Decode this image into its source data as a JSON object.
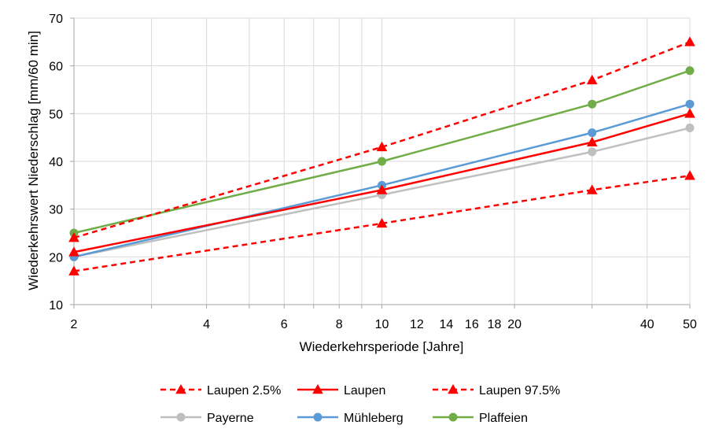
{
  "chart_data": {
    "type": "line",
    "x_scale": "log",
    "xlabel": "Wiederkehrsperiode [Jahre]",
    "ylabel": "Wiederkehrswert Niederschlag [mm/60 min]",
    "xlim": [
      2,
      50
    ],
    "ylim": [
      10,
      70
    ],
    "x_ticks": [
      2,
      4,
      6,
      8,
      10,
      12,
      14,
      16,
      18,
      20,
      40,
      50
    ],
    "y_ticks": [
      10,
      20,
      30,
      40,
      50,
      60,
      70
    ],
    "x_gridlines": [
      2,
      3,
      4,
      5,
      6,
      7,
      8,
      9,
      10,
      20,
      30,
      40,
      50
    ],
    "grid": true,
    "legend_position": "bottom",
    "series": [
      {
        "name": "Laupen 2.5%",
        "color": "#FF0000",
        "dashed": true,
        "marker": "triangle",
        "points": [
          [
            2,
            17
          ],
          [
            10,
            27
          ],
          [
            30,
            34
          ],
          [
            50,
            37
          ]
        ]
      },
      {
        "name": "Laupen",
        "color": "#FF0000",
        "dashed": false,
        "marker": "triangle",
        "points": [
          [
            2,
            21
          ],
          [
            10,
            34
          ],
          [
            30,
            44
          ],
          [
            50,
            50
          ]
        ]
      },
      {
        "name": "Laupen 97.5%",
        "color": "#FF0000",
        "dashed": true,
        "marker": "triangle",
        "points": [
          [
            2,
            24
          ],
          [
            10,
            43
          ],
          [
            30,
            57
          ],
          [
            50,
            65
          ]
        ]
      },
      {
        "name": "Payerne",
        "color": "#BFBFBF",
        "dashed": false,
        "marker": "circle",
        "points": [
          [
            2,
            20
          ],
          [
            10,
            33
          ],
          [
            30,
            42
          ],
          [
            50,
            47
          ]
        ]
      },
      {
        "name": "Mühleberg",
        "color": "#5B9BD5",
        "dashed": false,
        "marker": "circle",
        "points": [
          [
            2,
            20
          ],
          [
            10,
            35
          ],
          [
            30,
            46
          ],
          [
            50,
            52
          ]
        ]
      },
      {
        "name": "Plaffeien",
        "color": "#70AD47",
        "dashed": false,
        "marker": "circle",
        "points": [
          [
            2,
            25
          ],
          [
            10,
            40
          ],
          [
            30,
            52
          ],
          [
            50,
            59
          ]
        ]
      }
    ],
    "draw_order": [
      3,
      4,
      5,
      0,
      2,
      1
    ],
    "legend_rows": [
      [
        0,
        1,
        2
      ],
      [
        3,
        4,
        5
      ]
    ]
  }
}
